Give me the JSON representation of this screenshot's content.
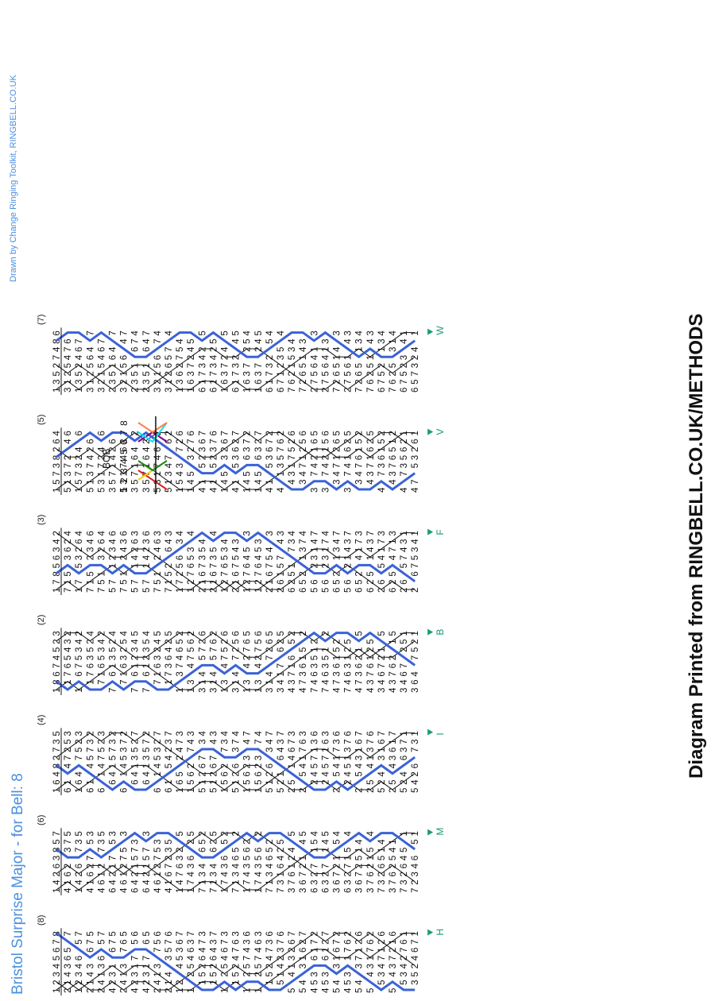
{
  "title": "Bristol Surprise Major - for Bell: 8",
  "credit": "Drawn by Change Ringing Toolkit, RINGBELL.CO.UK",
  "footer": "Diagram Printed from RINGBELL.CO.UK/METHODS",
  "bob_label": "BOB",
  "colors": {
    "title": "#4a90e2",
    "blue_line": "#3b63d6",
    "lead_marker": "#1a9a7a",
    "black_line": "#111111",
    "bob_orange": "#ff7f50",
    "bob_purple": "#800080",
    "bob_cyan": "#00e5ee",
    "bob_green": "#1a8a1a",
    "bob_red": "#e02020",
    "bob_yellow": "#f0d000"
  },
  "leads": [
    {
      "start_place": "(8)",
      "marker": "H",
      "first_row": "12345678"
    },
    {
      "start_place": "(6)",
      "marker": "M",
      "first_row": "14263857"
    },
    {
      "start_place": "(4)",
      "marker": "I",
      "first_row": "16482735"
    },
    {
      "start_place": "(2)",
      "marker": "B",
      "first_row": "18674523"
    },
    {
      "start_place": "(3)",
      "marker": "F",
      "first_row": "17856342"
    },
    {
      "start_place": "(5)",
      "marker": "V",
      "first_row": "15738264"
    },
    {
      "start_place": "(7)",
      "marker": "W",
      "first_row": "13527486"
    }
  ],
  "bob_bells": "12345678"
}
